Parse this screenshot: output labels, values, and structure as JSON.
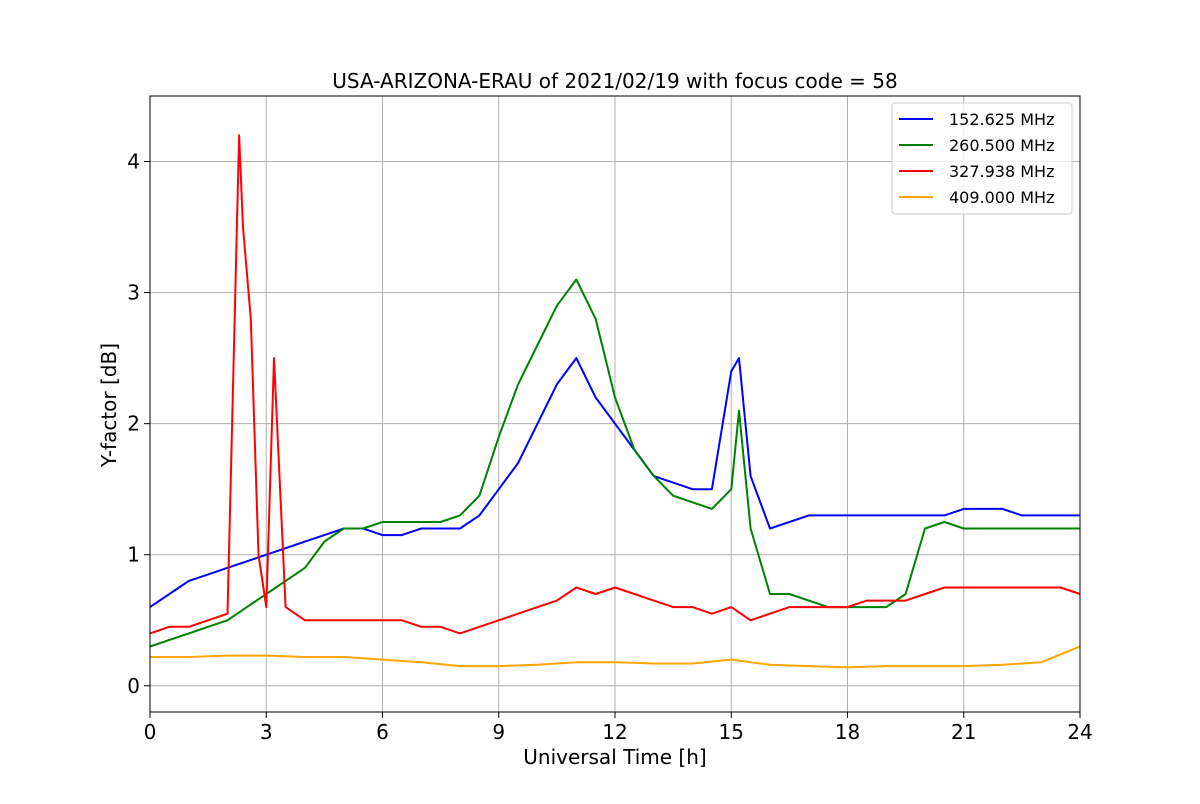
{
  "chart_data": {
    "type": "line",
    "title": "USA-ARIZONA-ERAU of 2021/02/19 with focus code = 58",
    "xlabel": "Universal Time [h]",
    "ylabel": "Y-factor [dB]",
    "xlim": [
      0,
      24
    ],
    "ylim": [
      -0.2,
      4.5
    ],
    "xticks": [
      0,
      3,
      6,
      9,
      12,
      15,
      18,
      21,
      24
    ],
    "yticks": [
      0,
      1,
      2,
      3,
      4
    ],
    "grid": true,
    "legend_position": "top-right",
    "series": [
      {
        "name": "152.625 MHz",
        "color": "#0000ff",
        "x": [
          0,
          0.5,
          1,
          1.5,
          2,
          2.5,
          3,
          3.5,
          4,
          4.5,
          5,
          5.5,
          6,
          6.5,
          7,
          7.5,
          8,
          8.5,
          9,
          9.5,
          10,
          10.5,
          11,
          11.5,
          12,
          12.5,
          13,
          13.5,
          14,
          14.5,
          15,
          15.2,
          15.5,
          16,
          16.5,
          17,
          17.5,
          18,
          18.5,
          19,
          19.5,
          20,
          20.5,
          21,
          21.5,
          22,
          22.5,
          23,
          23.5,
          24
        ],
        "values": [
          0.6,
          0.7,
          0.8,
          0.85,
          0.9,
          0.95,
          1.0,
          1.05,
          1.1,
          1.15,
          1.2,
          1.2,
          1.15,
          1.15,
          1.2,
          1.2,
          1.2,
          1.3,
          1.5,
          1.7,
          2.0,
          2.3,
          2.5,
          2.2,
          2.0,
          1.8,
          1.6,
          1.55,
          1.5,
          1.5,
          2.4,
          2.5,
          1.6,
          1.2,
          1.25,
          1.3,
          1.3,
          1.3,
          1.3,
          1.3,
          1.3,
          1.3,
          1.3,
          1.35,
          1.35,
          1.35,
          1.3,
          1.3,
          1.3,
          1.3
        ]
      },
      {
        "name": "260.500 MHz",
        "color": "#008000",
        "x": [
          0,
          0.5,
          1,
          1.5,
          2,
          2.5,
          3,
          3.5,
          4,
          4.5,
          5,
          5.5,
          6,
          6.5,
          7,
          7.5,
          8,
          8.5,
          9,
          9.5,
          10,
          10.5,
          11,
          11.5,
          12,
          12.5,
          13,
          13.5,
          14,
          14.5,
          15,
          15.2,
          15.5,
          16,
          16.5,
          17,
          17.5,
          18,
          18.5,
          19,
          19.5,
          20,
          20.5,
          21,
          21.5,
          22,
          22.5,
          23,
          23.5,
          24
        ],
        "values": [
          0.3,
          0.35,
          0.4,
          0.45,
          0.5,
          0.6,
          0.7,
          0.8,
          0.9,
          1.1,
          1.2,
          1.2,
          1.25,
          1.25,
          1.25,
          1.25,
          1.3,
          1.45,
          1.9,
          2.3,
          2.6,
          2.9,
          3.1,
          2.8,
          2.2,
          1.8,
          1.6,
          1.45,
          1.4,
          1.35,
          1.5,
          2.1,
          1.2,
          0.7,
          0.7,
          0.65,
          0.6,
          0.6,
          0.6,
          0.6,
          0.7,
          1.2,
          1.25,
          1.2,
          1.2,
          1.2,
          1.2,
          1.2,
          1.2,
          1.2
        ]
      },
      {
        "name": "327.938 MHz",
        "color": "#ff0000",
        "x": [
          0,
          0.5,
          1,
          1.5,
          2,
          2.2,
          2.3,
          2.4,
          2.6,
          2.8,
          3,
          3.2,
          3.5,
          4,
          4.5,
          5,
          5.5,
          6,
          6.5,
          7,
          7.5,
          8,
          8.5,
          9,
          9.5,
          10,
          10.5,
          11,
          11.5,
          12,
          12.5,
          13,
          13.5,
          14,
          14.5,
          15,
          15.5,
          16,
          16.5,
          17,
          17.5,
          18,
          18.5,
          19,
          19.5,
          20,
          20.5,
          21,
          21.5,
          22,
          22.5,
          23,
          23.5,
          24
        ],
        "values": [
          0.4,
          0.45,
          0.45,
          0.5,
          0.55,
          3.0,
          4.2,
          3.5,
          2.8,
          1.0,
          0.6,
          2.5,
          0.6,
          0.5,
          0.5,
          0.5,
          0.5,
          0.5,
          0.5,
          0.45,
          0.45,
          0.4,
          0.45,
          0.5,
          0.55,
          0.6,
          0.65,
          0.75,
          0.7,
          0.75,
          0.7,
          0.65,
          0.6,
          0.6,
          0.55,
          0.6,
          0.5,
          0.55,
          0.6,
          0.6,
          0.6,
          0.6,
          0.65,
          0.65,
          0.65,
          0.7,
          0.75,
          0.75,
          0.75,
          0.75,
          0.75,
          0.75,
          0.75,
          0.7
        ]
      },
      {
        "name": "409.000 MHz",
        "color": "#ffa500",
        "x": [
          0,
          1,
          2,
          3,
          4,
          5,
          6,
          7,
          8,
          9,
          10,
          11,
          12,
          13,
          14,
          15,
          16,
          17,
          18,
          19,
          20,
          21,
          22,
          23,
          24
        ],
        "values": [
          0.22,
          0.22,
          0.23,
          0.23,
          0.22,
          0.22,
          0.2,
          0.18,
          0.15,
          0.15,
          0.16,
          0.18,
          0.18,
          0.17,
          0.17,
          0.2,
          0.16,
          0.15,
          0.14,
          0.15,
          0.15,
          0.15,
          0.16,
          0.18,
          0.3
        ]
      }
    ]
  }
}
